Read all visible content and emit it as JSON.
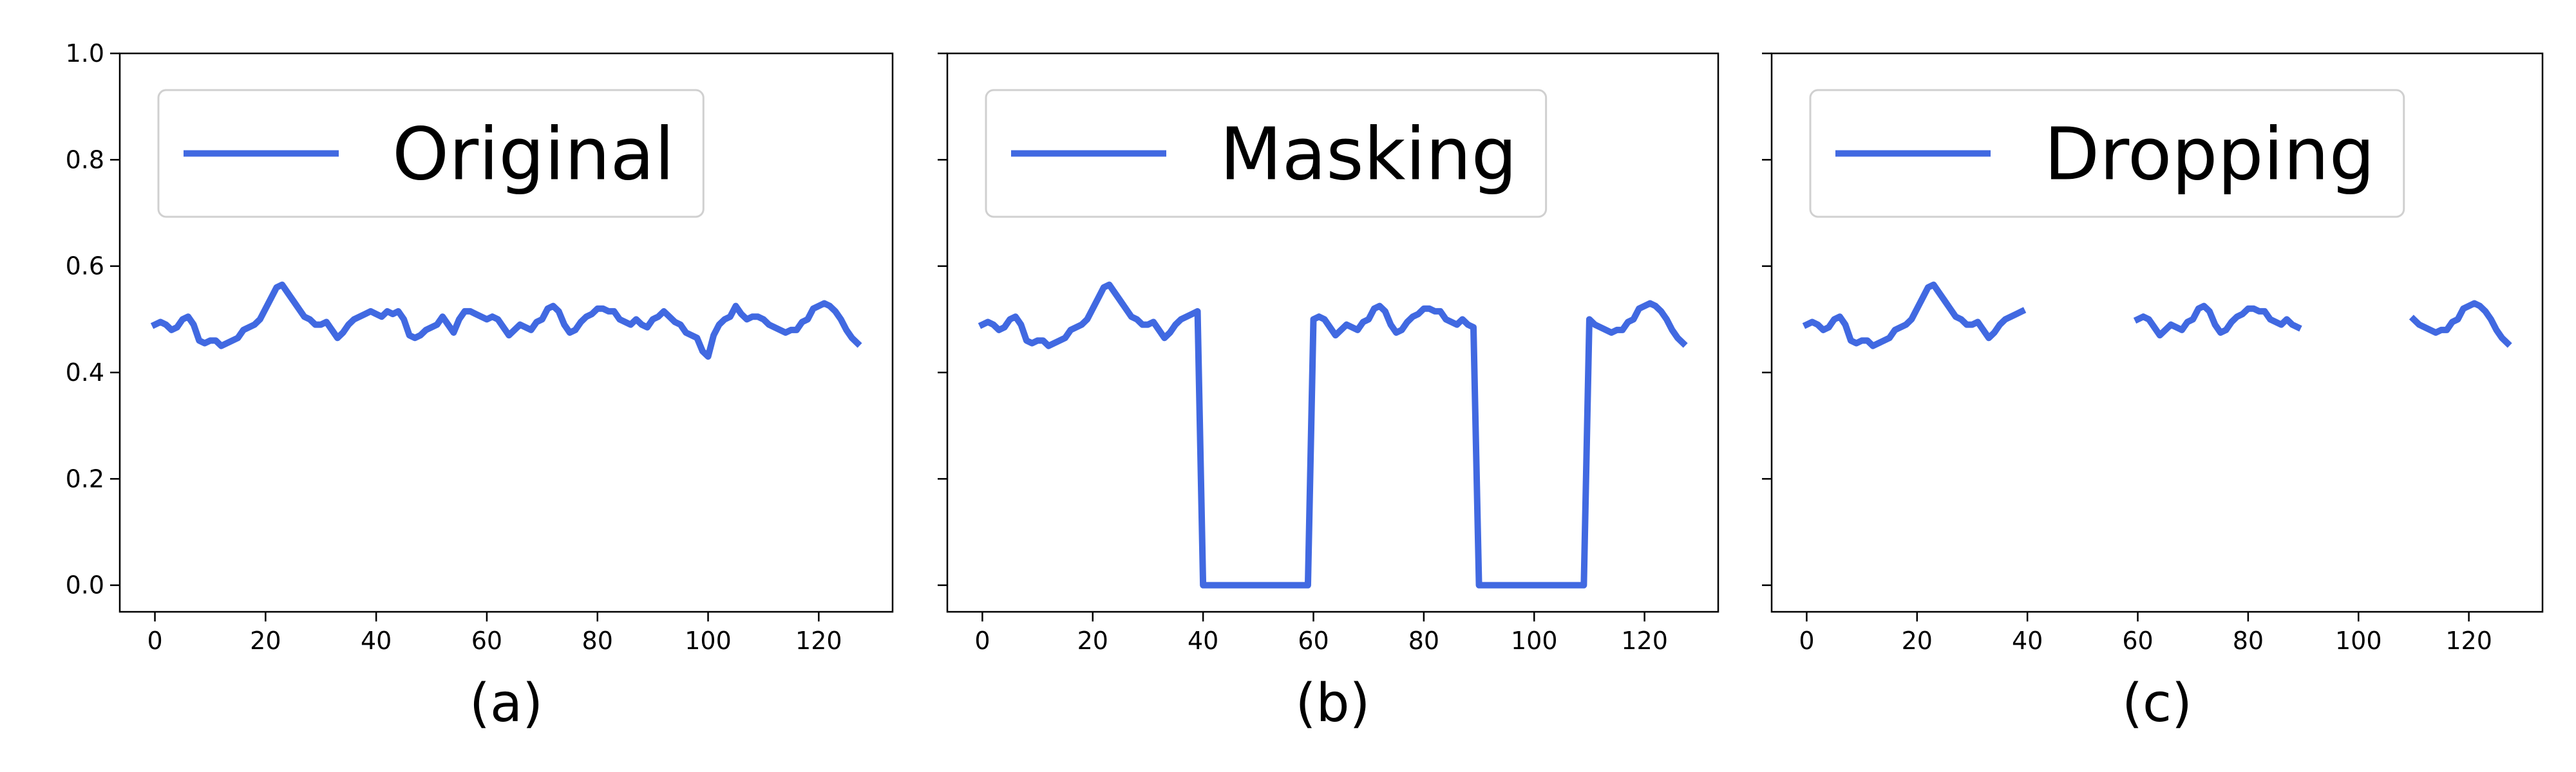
{
  "chart_data": [
    {
      "type": "line",
      "xlabel": "(a)",
      "x": [
        0,
        1,
        2,
        3,
        4,
        5,
        6,
        7,
        8,
        9,
        10,
        11,
        12,
        13,
        14,
        15,
        16,
        17,
        18,
        19,
        20,
        21,
        22,
        23,
        24,
        25,
        26,
        27,
        28,
        29,
        30,
        31,
        32,
        33,
        34,
        35,
        36,
        37,
        38,
        39,
        40,
        41,
        42,
        43,
        44,
        45,
        46,
        47,
        48,
        49,
        50,
        51,
        52,
        53,
        54,
        55,
        56,
        57,
        58,
        59,
        60,
        61,
        62,
        63,
        64,
        65,
        66,
        67,
        68,
        69,
        70,
        71,
        72,
        73,
        74,
        75,
        76,
        77,
        78,
        79,
        80,
        81,
        82,
        83,
        84,
        85,
        86,
        87,
        88,
        89,
        90,
        91,
        92,
        93,
        94,
        95,
        96,
        97,
        98,
        99,
        100,
        101,
        102,
        103,
        104,
        105,
        106,
        107,
        108,
        109,
        110,
        111,
        112,
        113,
        114,
        115,
        116,
        117,
        118,
        119,
        120,
        121,
        122,
        123,
        124,
        125,
        126,
        127
      ],
      "series": [
        {
          "name": "Original",
          "color": "#4169e1",
          "values": [
            0.49,
            0.495,
            0.49,
            0.48,
            0.485,
            0.5,
            0.505,
            0.49,
            0.46,
            0.455,
            0.46,
            0.46,
            0.45,
            0.455,
            0.46,
            0.465,
            0.48,
            0.485,
            0.49,
            0.5,
            0.52,
            0.54,
            0.56,
            0.565,
            0.55,
            0.535,
            0.52,
            0.505,
            0.5,
            0.49,
            0.49,
            0.495,
            0.48,
            0.465,
            0.475,
            0.49,
            0.5,
            0.505,
            0.51,
            0.515,
            0.51,
            0.505,
            0.515,
            0.51,
            0.515,
            0.5,
            0.47,
            0.465,
            0.47,
            0.48,
            0.485,
            0.49,
            0.505,
            0.49,
            0.475,
            0.5,
            0.515,
            0.515,
            0.51,
            0.505,
            0.5,
            0.505,
            0.5,
            0.485,
            0.47,
            0.48,
            0.49,
            0.485,
            0.48,
            0.495,
            0.5,
            0.52,
            0.525,
            0.515,
            0.49,
            0.475,
            0.48,
            0.495,
            0.505,
            0.51,
            0.52,
            0.52,
            0.515,
            0.515,
            0.5,
            0.495,
            0.49,
            0.5,
            0.49,
            0.485,
            0.5,
            0.505,
            0.515,
            0.505,
            0.495,
            0.49,
            0.475,
            0.47,
            0.465,
            0.44,
            0.43,
            0.47,
            0.49,
            0.5,
            0.505,
            0.525,
            0.51,
            0.5,
            0.505,
            0.505,
            0.5,
            0.49,
            0.485,
            0.48,
            0.475,
            0.48,
            0.48,
            0.495,
            0.5,
            0.52,
            0.525,
            0.53,
            0.525,
            0.515,
            0.5,
            0.48,
            0.465,
            0.455
          ]
        }
      ],
      "xlim": [
        -6.35,
        133.35
      ],
      "ylim": [
        -0.05,
        1.0
      ],
      "xticks": [
        0,
        20,
        40,
        60,
        80,
        100,
        120
      ],
      "yticks": [
        {
          "value": 0,
          "label": "0.0"
        },
        0.2,
        0.4,
        0.6,
        0.8,
        {
          "value": 1,
          "label": "1.0"
        }
      ],
      "legend": "upper left"
    },
    {
      "type": "line",
      "xlabel": "(b)",
      "sharey": true,
      "x": [
        0,
        1,
        2,
        3,
        4,
        5,
        6,
        7,
        8,
        9,
        10,
        11,
        12,
        13,
        14,
        15,
        16,
        17,
        18,
        19,
        20,
        21,
        22,
        23,
        24,
        25,
        26,
        27,
        28,
        29,
        30,
        31,
        32,
        33,
        34,
        35,
        36,
        37,
        38,
        39,
        40,
        41,
        42,
        43,
        44,
        45,
        46,
        47,
        48,
        49,
        50,
        51,
        52,
        53,
        54,
        55,
        56,
        57,
        58,
        59,
        60,
        61,
        62,
        63,
        64,
        65,
        66,
        67,
        68,
        69,
        70,
        71,
        72,
        73,
        74,
        75,
        76,
        77,
        78,
        79,
        80,
        81,
        82,
        83,
        84,
        85,
        86,
        87,
        88,
        89,
        90,
        91,
        92,
        93,
        94,
        95,
        96,
        97,
        98,
        99,
        100,
        101,
        102,
        103,
        104,
        105,
        106,
        107,
        108,
        109,
        110,
        111,
        112,
        113,
        114,
        115,
        116,
        117,
        118,
        119,
        120,
        121,
        122,
        123,
        124,
        125,
        126,
        127
      ],
      "series": [
        {
          "name": "Masking",
          "color": "#4169e1",
          "values": [
            0.49,
            0.495,
            0.49,
            0.48,
            0.485,
            0.5,
            0.505,
            0.49,
            0.46,
            0.455,
            0.46,
            0.46,
            0.45,
            0.455,
            0.46,
            0.465,
            0.48,
            0.485,
            0.49,
            0.5,
            0.52,
            0.54,
            0.56,
            0.565,
            0.55,
            0.535,
            0.52,
            0.505,
            0.5,
            0.49,
            0.49,
            0.495,
            0.48,
            0.465,
            0.475,
            0.49,
            0.5,
            0.505,
            0.51,
            0.515,
            0,
            0,
            0,
            0,
            0,
            0,
            0,
            0,
            0,
            0,
            0,
            0,
            0,
            0,
            0,
            0,
            0,
            0,
            0,
            0,
            0.5,
            0.505,
            0.5,
            0.485,
            0.47,
            0.48,
            0.49,
            0.485,
            0.48,
            0.495,
            0.5,
            0.52,
            0.525,
            0.515,
            0.49,
            0.475,
            0.48,
            0.495,
            0.505,
            0.51,
            0.52,
            0.52,
            0.515,
            0.515,
            0.5,
            0.495,
            0.49,
            0.5,
            0.49,
            0.485,
            0,
            0,
            0,
            0,
            0,
            0,
            0,
            0,
            0,
            0,
            0,
            0,
            0,
            0,
            0,
            0,
            0,
            0,
            0,
            0,
            0.5,
            0.49,
            0.485,
            0.48,
            0.475,
            0.48,
            0.48,
            0.495,
            0.5,
            0.52,
            0.525,
            0.53,
            0.525,
            0.515,
            0.5,
            0.48,
            0.465,
            0.455
          ]
        }
      ],
      "xlim": [
        -6.35,
        133.35
      ],
      "ylim": [
        -0.05,
        1.0
      ],
      "xticks": [
        0,
        20,
        40,
        60,
        80,
        100,
        120
      ],
      "yticks": [
        {
          "value": 0,
          "label": "0.0"
        },
        0.2,
        0.4,
        0.6,
        0.8,
        {
          "value": 1,
          "label": "1.0"
        }
      ],
      "legend": "upper left"
    },
    {
      "type": "line",
      "xlabel": "(c)",
      "sharey": true,
      "x": [
        0,
        1,
        2,
        3,
        4,
        5,
        6,
        7,
        8,
        9,
        10,
        11,
        12,
        13,
        14,
        15,
        16,
        17,
        18,
        19,
        20,
        21,
        22,
        23,
        24,
        25,
        26,
        27,
        28,
        29,
        30,
        31,
        32,
        33,
        34,
        35,
        36,
        37,
        38,
        39,
        40,
        41,
        42,
        43,
        44,
        45,
        46,
        47,
        48,
        49,
        50,
        51,
        52,
        53,
        54,
        55,
        56,
        57,
        58,
        59,
        60,
        61,
        62,
        63,
        64,
        65,
        66,
        67,
        68,
        69,
        70,
        71,
        72,
        73,
        74,
        75,
        76,
        77,
        78,
        79,
        80,
        81,
        82,
        83,
        84,
        85,
        86,
        87,
        88,
        89,
        90,
        91,
        92,
        93,
        94,
        95,
        96,
        97,
        98,
        99,
        100,
        101,
        102,
        103,
        104,
        105,
        106,
        107,
        108,
        109,
        110,
        111,
        112,
        113,
        114,
        115,
        116,
        117,
        118,
        119,
        120,
        121,
        122,
        123,
        124,
        125,
        126,
        127
      ],
      "series": [
        {
          "name": "Dropping",
          "color": "#4169e1",
          "values": [
            0.49,
            0.495,
            0.49,
            0.48,
            0.485,
            0.5,
            0.505,
            0.49,
            0.46,
            0.455,
            0.46,
            0.46,
            0.45,
            0.455,
            0.46,
            0.465,
            0.48,
            0.485,
            0.49,
            0.5,
            0.52,
            0.54,
            0.56,
            0.565,
            0.55,
            0.535,
            0.52,
            0.505,
            0.5,
            0.49,
            0.49,
            0.495,
            0.48,
            0.465,
            0.475,
            0.49,
            0.5,
            0.505,
            0.51,
            0.515,
            null,
            null,
            null,
            null,
            null,
            null,
            null,
            null,
            null,
            null,
            null,
            null,
            null,
            null,
            null,
            null,
            null,
            null,
            null,
            null,
            0.5,
            0.505,
            0.5,
            0.485,
            0.47,
            0.48,
            0.49,
            0.485,
            0.48,
            0.495,
            0.5,
            0.52,
            0.525,
            0.515,
            0.49,
            0.475,
            0.48,
            0.495,
            0.505,
            0.51,
            0.52,
            0.52,
            0.515,
            0.515,
            0.5,
            0.495,
            0.49,
            0.5,
            0.49,
            0.485,
            null,
            null,
            null,
            null,
            null,
            null,
            null,
            null,
            null,
            null,
            null,
            null,
            null,
            null,
            null,
            null,
            null,
            null,
            null,
            null,
            0.5,
            0.49,
            0.485,
            0.48,
            0.475,
            0.48,
            0.48,
            0.495,
            0.5,
            0.52,
            0.525,
            0.53,
            0.525,
            0.515,
            0.5,
            0.48,
            0.465,
            0.455
          ]
        }
      ],
      "xlim": [
        -6.35,
        133.35
      ],
      "ylim": [
        -0.05,
        1.0
      ],
      "xticks": [
        0,
        20,
        40,
        60,
        80,
        100,
        120
      ],
      "yticks": [
        {
          "value": 0,
          "label": "0.0"
        },
        0.2,
        0.4,
        0.6,
        0.8,
        {
          "value": 1,
          "label": "1.0"
        }
      ],
      "legend": "upper left"
    }
  ]
}
